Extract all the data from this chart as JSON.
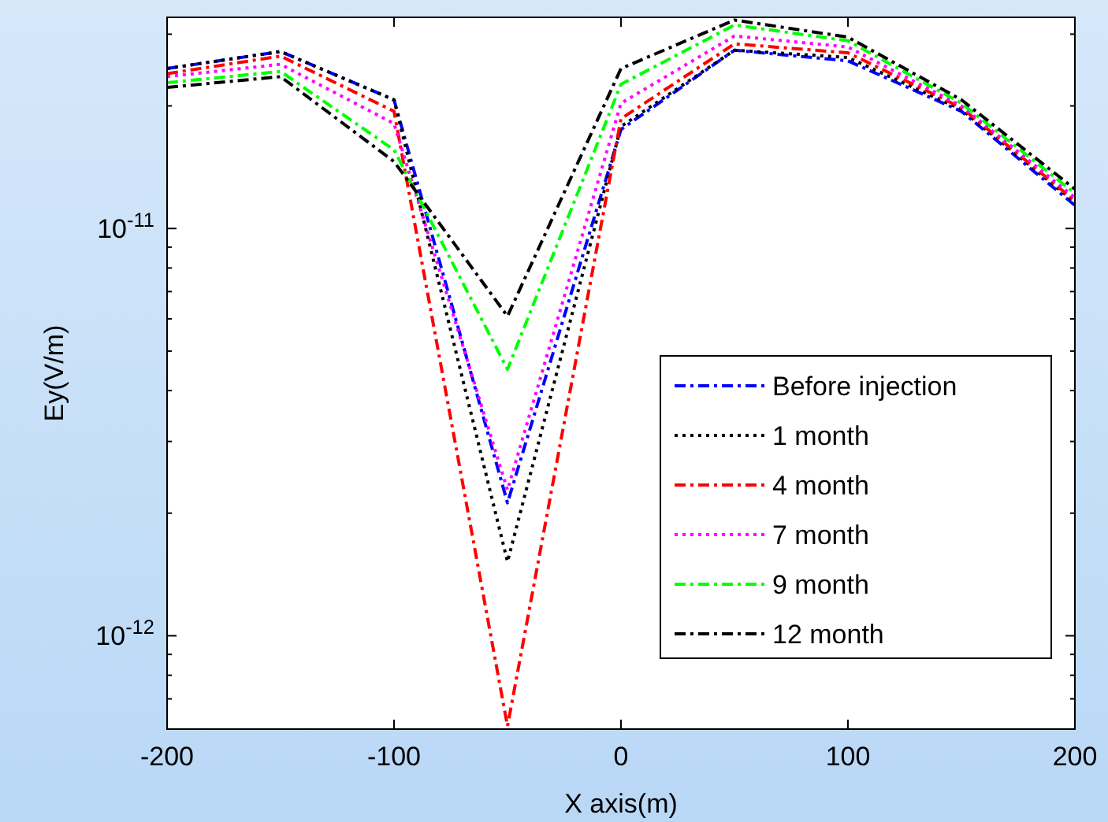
{
  "chart_data": {
    "type": "line",
    "xlabel": "X axis(m)",
    "ylabel": "Ey(V/m)",
    "x": [
      -200,
      -150,
      -100,
      -50,
      0,
      50,
      100,
      150,
      200
    ],
    "xlim": [
      -200,
      200
    ],
    "xticks": [
      -200,
      -100,
      0,
      100,
      200
    ],
    "ylim": [
      5.9e-13,
      3.3e-11
    ],
    "log": true,
    "yticks": [
      {
        "value": 7e-13,
        "label": null
      },
      {
        "value": 8e-13,
        "label": null
      },
      {
        "value": 9e-13,
        "label": null
      },
      {
        "value": 1e-12,
        "label": "10$^{-12}$"
      },
      {
        "value": 2e-12,
        "label": null
      },
      {
        "value": 3e-12,
        "label": null
      },
      {
        "value": 4e-12,
        "label": null
      },
      {
        "value": 5e-12,
        "label": null
      },
      {
        "value": 6e-12,
        "label": null
      },
      {
        "value": 7e-12,
        "label": null
      },
      {
        "value": 8e-12,
        "label": null
      },
      {
        "value": 9e-12,
        "label": null
      },
      {
        "value": 1e-11,
        "label": "10$^{-11}$"
      },
      {
        "value": 2e-11,
        "label": null
      },
      {
        "value": 3e-11,
        "label": null
      }
    ],
    "legend": "bottom right",
    "grid": false,
    "marker": "none",
    "series": [
      {
        "name": "Before injection",
        "color": "#0000ff",
        "line_style": "dashed",
        "values": [
          2.47e-11,
          2.72e-11,
          2.07e-11,
          2.12e-12,
          1.75e-11,
          2.74e-11,
          2.58e-11,
          1.94e-11,
          1.14e-11
        ]
      },
      {
        "name": "1 month",
        "color": "#000000",
        "line_style": "dotted",
        "values": [
          2.47e-11,
          2.72e-11,
          2.07e-11,
          1.52e-12,
          1.78e-11,
          2.74e-11,
          2.63e-11,
          1.96e-11,
          1.16e-11
        ]
      },
      {
        "name": "4 month",
        "color": "#ff0000",
        "line_style": "dashed",
        "values": [
          2.4e-11,
          2.65e-11,
          1.94e-11,
          6e-13,
          1.86e-11,
          2.84e-11,
          2.7e-11,
          1.98e-11,
          1.17e-11
        ]
      },
      {
        "name": "7 month",
        "color": "#ff00ff",
        "line_style": "dotted",
        "values": [
          2.36e-11,
          2.53e-11,
          1.81e-11,
          2.28e-12,
          2.03e-11,
          2.97e-11,
          2.79e-11,
          2e-11,
          1.19e-11
        ]
      },
      {
        "name": "9 month",
        "color": "#00ff00",
        "line_style": "dashed",
        "values": [
          2.28e-11,
          2.43e-11,
          1.56e-11,
          4.51e-12,
          2.26e-11,
          3.16e-11,
          2.89e-11,
          2.03e-11,
          1.22e-11
        ]
      },
      {
        "name": "12 month",
        "color": "#000000",
        "line_style": "dashed",
        "values": [
          2.22e-11,
          2.36e-11,
          1.46e-11,
          6.09e-12,
          2.47e-11,
          3.25e-11,
          2.95e-11,
          2.07e-11,
          1.25e-11
        ]
      }
    ]
  }
}
